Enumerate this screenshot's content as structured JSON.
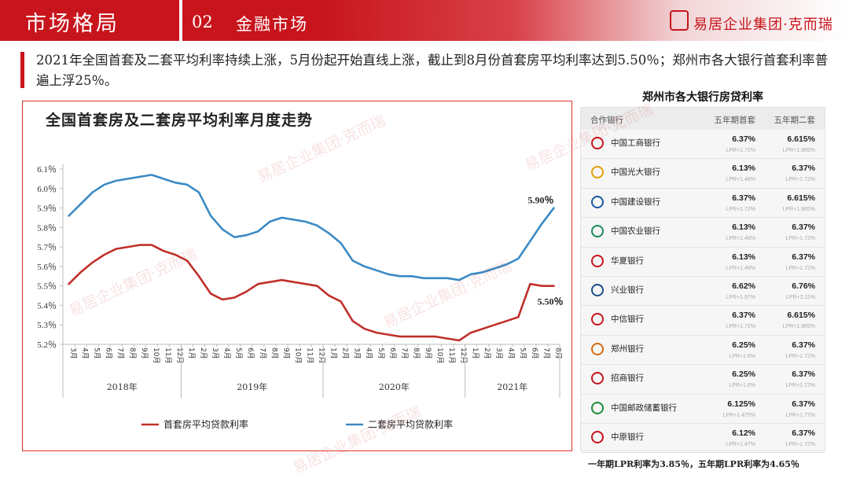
{
  "header": {
    "section_title": "市场格局",
    "section_number": "02",
    "section_subtitle": "金融市场",
    "brand": "易居企业集团·克而瑞"
  },
  "summary": "2021年全国首套及二套平均利率持续上涨，5月份起开始直线上涨，截止到8月份首套房平均利率达到5.50％；郑州市各大银行首套利率普遍上浮25％。",
  "chart_data": {
    "type": "line",
    "title": "全国首套房及二套房平均利率月度走势",
    "ylim": [
      5.2,
      6.1
    ],
    "y_ticks": [
      "6.1％",
      "6.0％",
      "5.9％",
      "5.8％",
      "5.7％",
      "5.6％",
      "5.5％",
      "5.4％",
      "5.3％",
      "5.2％"
    ],
    "x": [
      "3月",
      "4月",
      "5月",
      "6月",
      "7月",
      "8月",
      "9月",
      "10月",
      "11月",
      "12月",
      "1月",
      "2月",
      "3月",
      "4月",
      "5月",
      "6月",
      "7月",
      "8月",
      "9月",
      "10月",
      "11月",
      "12月",
      "1月",
      "2月",
      "3月",
      "4月",
      "5月",
      "6月",
      "7月",
      "8月",
      "9月",
      "10月",
      "11月",
      "12月",
      "1月",
      "2月",
      "3月",
      "4月",
      "5月",
      "6月",
      "7月",
      "8月"
    ],
    "year_groups": [
      {
        "label": "2018年",
        "start": 0,
        "count": 10
      },
      {
        "label": "2019年",
        "start": 10,
        "count": 12
      },
      {
        "label": "2020年",
        "start": 22,
        "count": 12
      },
      {
        "label": "2021年",
        "start": 34,
        "count": 8
      }
    ],
    "series": [
      {
        "name": "首套房平均贷款利率",
        "color": "#c0302a",
        "values": [
          5.51,
          5.57,
          5.62,
          5.66,
          5.69,
          5.7,
          5.71,
          5.71,
          5.68,
          5.66,
          5.63,
          5.55,
          5.46,
          5.43,
          5.44,
          5.47,
          5.51,
          5.52,
          5.53,
          5.52,
          5.51,
          5.5,
          5.45,
          5.42,
          5.32,
          5.28,
          5.26,
          5.25,
          5.24,
          5.24,
          5.24,
          5.24,
          5.23,
          5.22,
          5.26,
          5.28,
          5.3,
          5.32,
          5.34,
          5.51,
          5.5,
          5.5
        ],
        "end_label": "5.50％"
      },
      {
        "name": "二套房平均贷款利率",
        "color": "#3a8ac4",
        "values": [
          5.86,
          5.92,
          5.98,
          6.02,
          6.04,
          6.05,
          6.06,
          6.07,
          6.05,
          6.03,
          6.02,
          5.98,
          5.86,
          5.79,
          5.75,
          5.76,
          5.78,
          5.83,
          5.85,
          5.84,
          5.83,
          5.81,
          5.77,
          5.72,
          5.63,
          5.6,
          5.58,
          5.56,
          5.55,
          5.55,
          5.54,
          5.54,
          5.54,
          5.53,
          5.56,
          5.57,
          5.59,
          5.61,
          5.64,
          5.73,
          5.82,
          5.9
        ],
        "end_label": "5.90％"
      }
    ]
  },
  "banks": {
    "title": "郑州市各大银行房贷利率",
    "headers": [
      "合作银行",
      "五年期首套",
      "五年期二套"
    ],
    "rows": [
      {
        "name": "中国工商银行",
        "first": "6.37%",
        "first_lpr": "LPR+1.72%",
        "second": "6.615%",
        "second_lpr": "LPR+1.965%",
        "icon": "icbc-logo-icon",
        "color": "#c8141c"
      },
      {
        "name": "中国光大银行",
        "first": "6.13%",
        "first_lpr": "LPR+1.48%",
        "second": "6.37%",
        "second_lpr": "LPR+1.72%",
        "icon": "ceb-logo-icon",
        "color": "#e0a000"
      },
      {
        "name": "中国建设银行",
        "first": "6.37%",
        "first_lpr": "LPR+1.72%",
        "second": "6.615%",
        "second_lpr": "LPR+1.965%",
        "icon": "ccb-logo-icon",
        "color": "#1a56a0"
      },
      {
        "name": "中国农业银行",
        "first": "6.13%",
        "first_lpr": "LPR+1.48%",
        "second": "6.37%",
        "second_lpr": "LPR+1.72%",
        "icon": "abc-logo-icon",
        "color": "#1b8a5a"
      },
      {
        "name": "华夏银行",
        "first": "6.13%",
        "first_lpr": "LPR+1.48%",
        "second": "6.37%",
        "second_lpr": "LPR+1.72%",
        "icon": "hxb-logo-icon",
        "color": "#c8141c"
      },
      {
        "name": "兴业银行",
        "first": "6.62%",
        "first_lpr": "LPR+1.97%",
        "second": "6.76%",
        "second_lpr": "LPR+2.11%",
        "icon": "cib-logo-icon",
        "color": "#1a4f8a"
      },
      {
        "name": "中信银行",
        "first": "6.37%",
        "first_lpr": "LPR+1.72%",
        "second": "6.615%",
        "second_lpr": "LPR+1.965%",
        "icon": "citic-logo-icon",
        "color": "#c8141c"
      },
      {
        "name": "郑州银行",
        "first": "6.25%",
        "first_lpr": "LPR+1.6%",
        "second": "6.37%",
        "second_lpr": "LPR+1.72%",
        "icon": "zzbank-logo-icon",
        "color": "#d86a10"
      },
      {
        "name": "招商银行",
        "first": "6.25%",
        "first_lpr": "LPR+1.6%",
        "second": "6.37%",
        "second_lpr": "LPR+1.72%",
        "icon": "cmb-logo-icon",
        "color": "#c8141c"
      },
      {
        "name": "中国邮政储蓄银行",
        "first": "6.125%",
        "first_lpr": "LPR+1.475%",
        "second": "6.37%",
        "second_lpr": "LPR+1.72%",
        "icon": "psbc-logo-icon",
        "color": "#1b8a3a"
      },
      {
        "name": "中原银行",
        "first": "6.12%",
        "first_lpr": "LPR+1.47%",
        "second": "6.37%",
        "second_lpr": "LPR+1.72%",
        "icon": "zybank-logo-icon",
        "color": "#c8141c"
      }
    ],
    "note": "一年期LPR利率为3.85％，五年期LPR利率为4.65％"
  }
}
